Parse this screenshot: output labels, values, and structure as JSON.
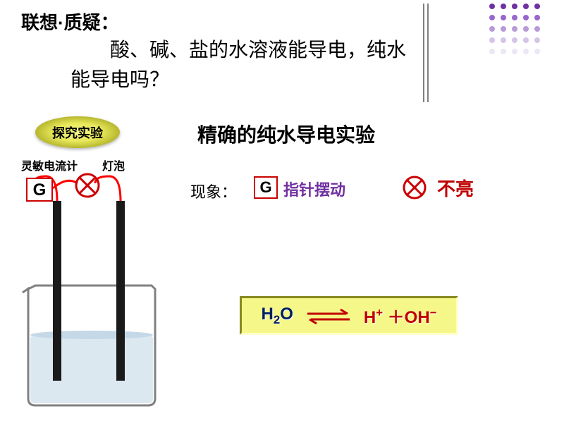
{
  "header": {
    "title": "联想·质疑：",
    "text": "　　酸、碱、盐的水溶液能导电，纯水能导电吗？"
  },
  "badge": {
    "text": "探究实验"
  },
  "experiment_title": "精确的纯水导电实验",
  "labels": {
    "galvanometer": "灵敏电流计",
    "bulb": "灯泡"
  },
  "observation": {
    "label": "现象：",
    "g_symbol": "G",
    "g_result": "指针摆动",
    "x_result": "不亮"
  },
  "equation": {
    "left_html": "H<sub>2</sub>O",
    "right_html": "H<sup>+</sup> ＋OH<sup>−</sup>"
  },
  "colors": {
    "dots": [
      "#7030a0",
      "#7030a0",
      "#7030a0",
      "#7030a0",
      "#7030a0",
      "#9966cc",
      "#9966cc",
      "#9966cc",
      "#9966cc",
      "#9966cc",
      "#b89ad9",
      "#b89ad9",
      "#b89ad9",
      "#b89ad9",
      "#b89ad9",
      "#d4c5e8",
      "#d4c5e8",
      "#d4c5e8",
      "#d4c5e8",
      "#d4c5e8",
      "#ede6f5",
      "#ede6f5",
      "#ede6f5",
      "#ede6f5",
      "#ede6f5"
    ],
    "red": "#cc0000",
    "darkred": "#c00000",
    "purple": "#7030a0",
    "navy": "#002060",
    "wire": "#ff0000",
    "electrode": "#1a1a1a",
    "beaker_stroke": "#808080",
    "water": "#dce8f0"
  }
}
